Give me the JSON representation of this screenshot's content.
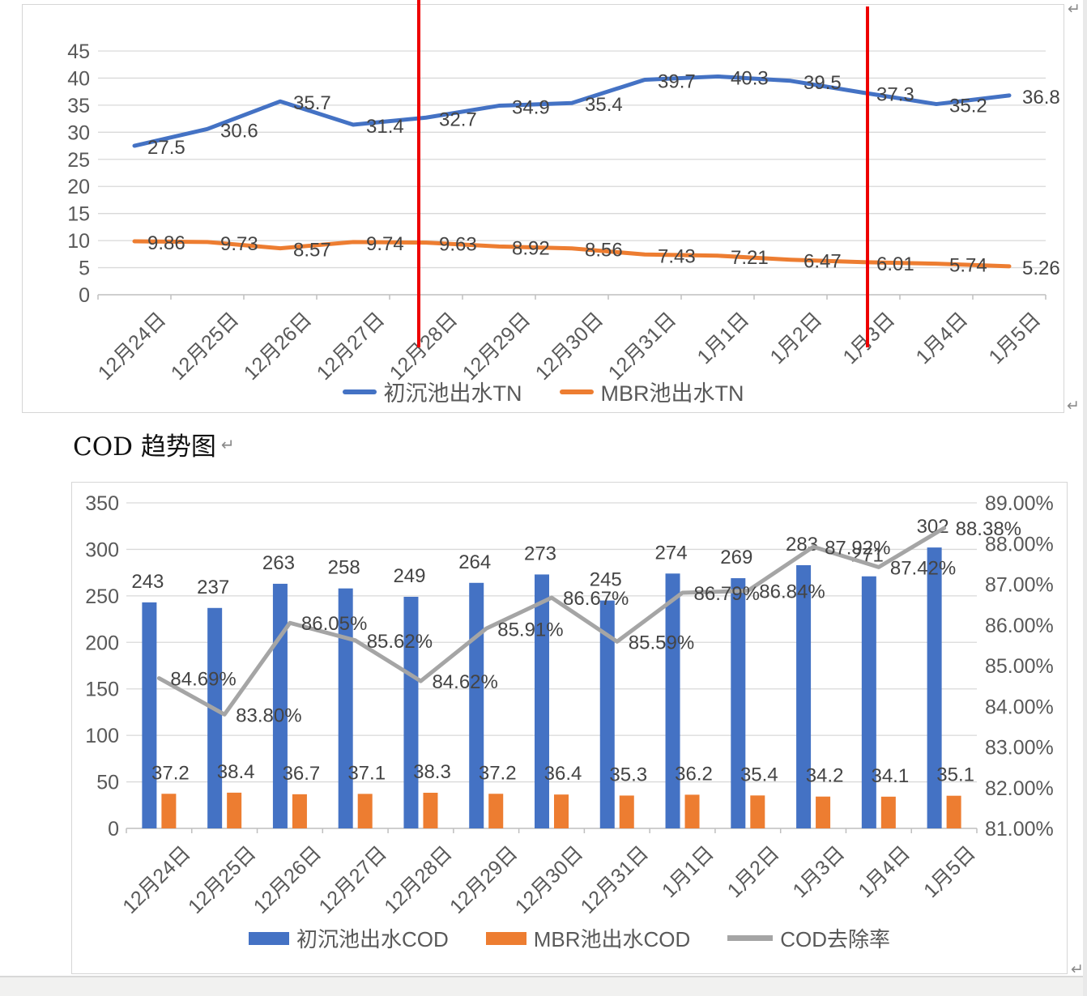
{
  "page": {
    "cod_section_title": "COD 趋势图",
    "paragraph_mark": "↵"
  },
  "colors": {
    "blue": "#4472C4",
    "orange": "#ED7D31",
    "gray": "#A5A5A5",
    "red": "#EE0000",
    "axis_text": "#595959",
    "label_text": "#444444",
    "gridline": "#D9D9D9",
    "axis_line": "#BFBFBF"
  },
  "chart_data": [
    {
      "type": "line",
      "title": "",
      "categories": [
        "12月24日",
        "12月25日",
        "12月26日",
        "12月27日",
        "12月28日",
        "12月29日",
        "12月30日",
        "12月31日",
        "1月1日",
        "1月2日",
        "1月3日",
        "1月4日",
        "1月5日"
      ],
      "series": [
        {
          "name": "初沉池出水TN",
          "color": "#4472C4",
          "values": [
            27.5,
            30.6,
            35.7,
            31.4,
            32.7,
            34.9,
            35.4,
            39.7,
            40.3,
            39.5,
            37.3,
            35.2,
            36.8
          ]
        },
        {
          "name": "MBR池出水TN",
          "color": "#ED7D31",
          "values": [
            9.86,
            9.73,
            8.57,
            9.74,
            9.63,
            8.92,
            8.56,
            7.43,
            7.21,
            6.47,
            6.01,
            5.74,
            5.26
          ]
        }
      ],
      "ylim": [
        0,
        45
      ],
      "ytick_step": 5,
      "grid": true,
      "legend_position": "bottom",
      "annotations": {
        "red_vertical_lines_at_categories": [
          "12月28日",
          "1月3日"
        ]
      }
    },
    {
      "type": "bar",
      "title": "COD 趋势图",
      "categories": [
        "12月24日",
        "12月25日",
        "12月26日",
        "12月27日",
        "12月28日",
        "12月29日",
        "12月30日",
        "12月31日",
        "1月1日",
        "1月2日",
        "1月3日",
        "1月4日",
        "1月5日"
      ],
      "series": [
        {
          "type": "bar",
          "axis": "left",
          "name": "初沉池出水COD",
          "color": "#4472C4",
          "values": [
            243,
            237,
            263,
            258,
            249,
            264,
            273,
            245,
            274,
            269,
            283,
            271,
            302
          ]
        },
        {
          "type": "bar",
          "axis": "left",
          "name": "MBR池出水COD",
          "color": "#ED7D31",
          "values": [
            37.2,
            38.4,
            36.7,
            37.1,
            38.3,
            37.2,
            36.4,
            35.3,
            36.2,
            35.4,
            34.2,
            34.1,
            35.1
          ]
        },
        {
          "type": "line",
          "axis": "right",
          "name": "COD去除率",
          "color": "#A5A5A5",
          "label_format": "percent2",
          "values": [
            84.69,
            83.8,
            86.05,
            85.62,
            84.62,
            85.91,
            86.67,
            85.59,
            86.79,
            86.84,
            87.92,
            87.42,
            88.38
          ]
        }
      ],
      "left_axis": {
        "min": 0,
        "max": 350,
        "step": 50
      },
      "right_axis": {
        "min": 81,
        "max": 89,
        "step": 1,
        "format": "percent2"
      },
      "grid": true,
      "legend_position": "bottom"
    }
  ]
}
